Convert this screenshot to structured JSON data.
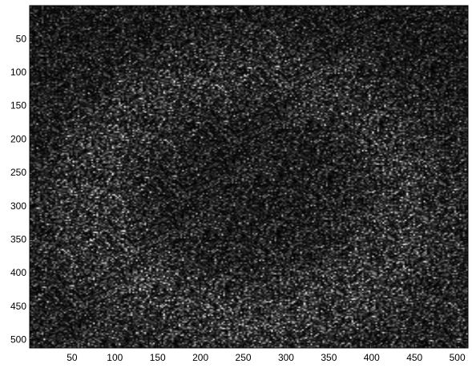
{
  "chart_data": {
    "type": "heatmap",
    "colormap": "gray",
    "title": "",
    "xlabel": "",
    "ylabel": "",
    "xlim": [
      0.5,
      512.5
    ],
    "ylim": [
      0.5,
      512.5
    ],
    "y_direction": "top-to-bottom",
    "x_ticks": [
      50,
      100,
      150,
      200,
      250,
      300,
      350,
      400,
      450,
      500
    ],
    "y_ticks": [
      50,
      100,
      150,
      200,
      250,
      300,
      350,
      400,
      450,
      500
    ],
    "x_tick_labels": [
      "50",
      "100",
      "150",
      "200",
      "250",
      "300",
      "350",
      "400",
      "450",
      "500"
    ],
    "y_tick_labels": [
      "50",
      "100",
      "150",
      "200",
      "250",
      "300",
      "350",
      "400",
      "450",
      "500"
    ],
    "grid": false,
    "legend": "none",
    "image_size": [
      512,
      512
    ],
    "description_values": {
      "pixel_range": [
        0,
        1
      ],
      "mean_level": 0.18
    }
  }
}
